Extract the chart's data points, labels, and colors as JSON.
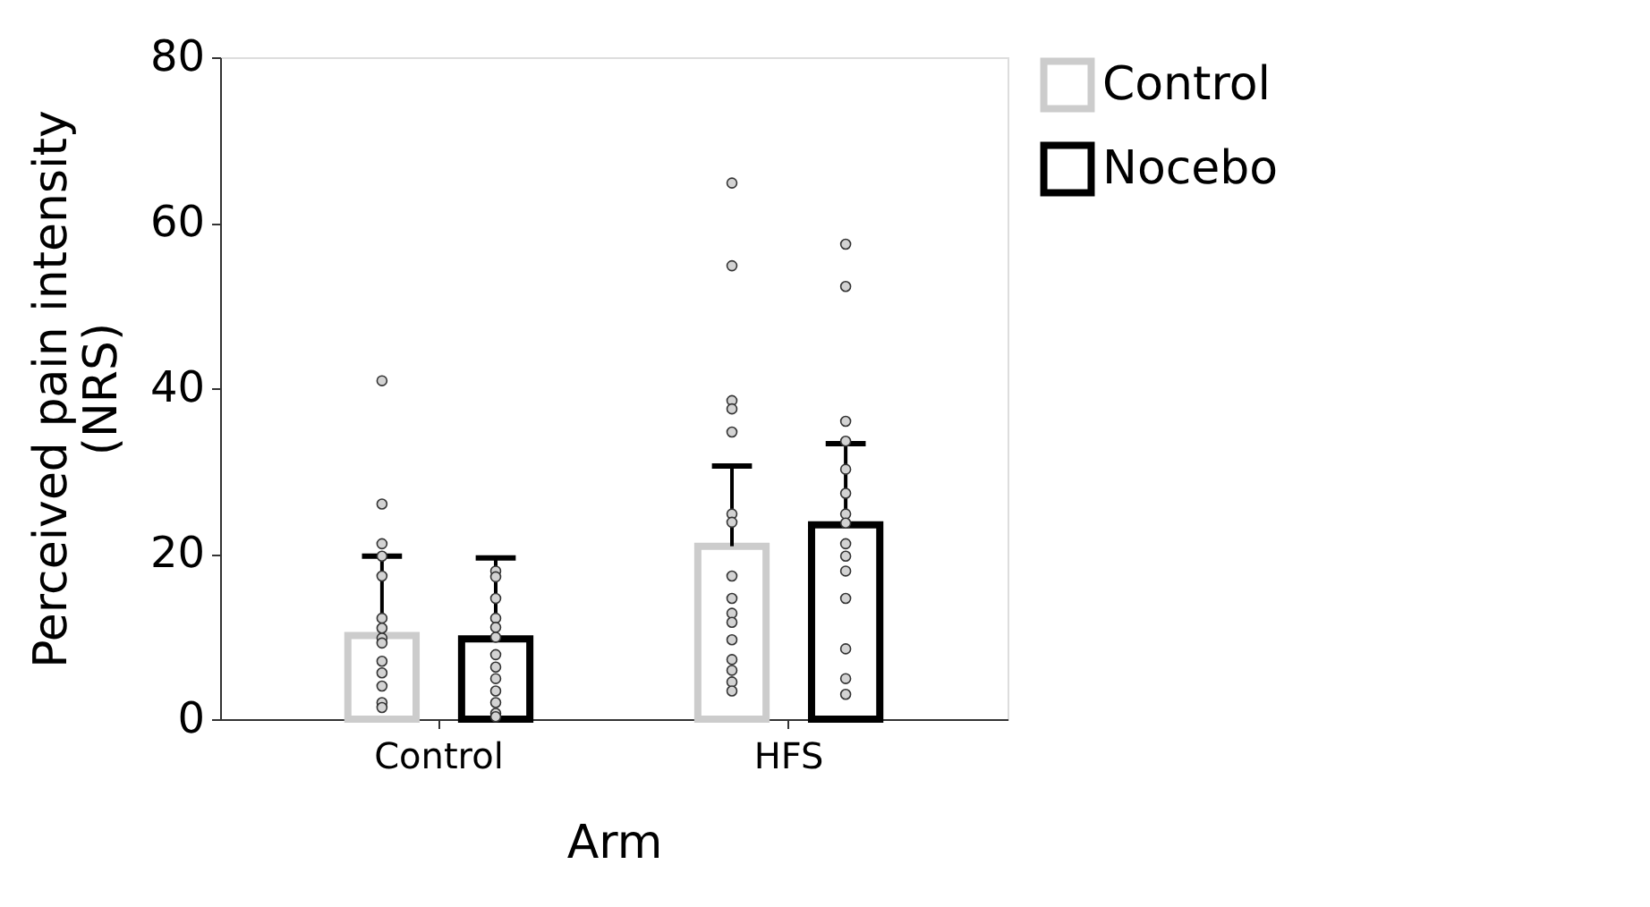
{
  "chart_data": {
    "type": "bar",
    "xlabel": "Arm",
    "ylabel": "Perceived pain intensity\n(NRS)",
    "categories": [
      "Control",
      "HFS"
    ],
    "series": [
      {
        "name": "Control",
        "color": "#cccccc",
        "values": [
          10.1,
          20.9
        ],
        "errors": [
          [
            10.1,
            19.7
          ],
          [
            20.9,
            30.6
          ]
        ]
      },
      {
        "name": "Nocebo",
        "color": "#000000",
        "values": [
          9.7,
          23.5
        ],
        "errors": [
          [
            9.7,
            19.5
          ],
          [
            23.5,
            33.3
          ]
        ]
      },
      {
        "type": "scatter",
        "color": "#d3d3d3",
        "x": [
          "Control",
          "Control",
          "Control",
          "Control",
          "Control",
          "Control",
          "Control",
          "Control",
          "Control",
          "Control",
          "Control",
          "Control",
          "Control",
          "Control",
          "HFS",
          "HFS",
          "HFS",
          "HFS",
          "HFS",
          "HFS",
          "HFS",
          "HFS",
          "HFS",
          "HFS",
          "HFS",
          "HFS",
          "HFS",
          "HFS",
          "HFS",
          "HFS"
        ],
        "values": [
          40.9,
          26.0,
          21.2,
          19.7,
          17.3,
          12.2,
          11.0,
          9.8,
          9.2,
          7.0,
          5.6,
          4.0,
          2.0,
          1.4,
          64.8,
          54.8,
          38.5,
          37.5,
          34.7,
          24.8,
          23.8,
          17.3,
          14.6,
          12.8,
          11.7,
          9.6,
          7.2,
          5.9,
          4.5,
          3.4
        ]
      },
      {
        "type": "scatter",
        "color": "#d3d3d3",
        "x": [
          "Control",
          "Control",
          "Control",
          "Control",
          "Control",
          "Control",
          "Control",
          "Control",
          "Control",
          "Control",
          "Control",
          "Control",
          "Control",
          "HFS",
          "HFS",
          "HFS",
          "HFS",
          "HFS",
          "HFS",
          "HFS",
          "HFS",
          "HFS",
          "HFS",
          "HFS",
          "HFS",
          "HFS",
          "HFS",
          "HFS"
        ],
        "values": [
          17.9,
          17.2,
          14.6,
          12.2,
          11.1,
          9.9,
          7.8,
          6.3,
          4.9,
          3.4,
          2.0,
          0.7,
          0.3,
          57.4,
          52.3,
          36.0,
          33.6,
          30.2,
          27.3,
          24.8,
          23.7,
          21.2,
          19.7,
          17.9,
          14.6,
          8.5,
          4.9,
          3.0
        ]
      }
    ],
    "ylim": [
      0,
      80
    ],
    "yticks": [
      0,
      20,
      40,
      60,
      80
    ],
    "grid": false,
    "legend": "top right",
    "marker": "circle"
  }
}
